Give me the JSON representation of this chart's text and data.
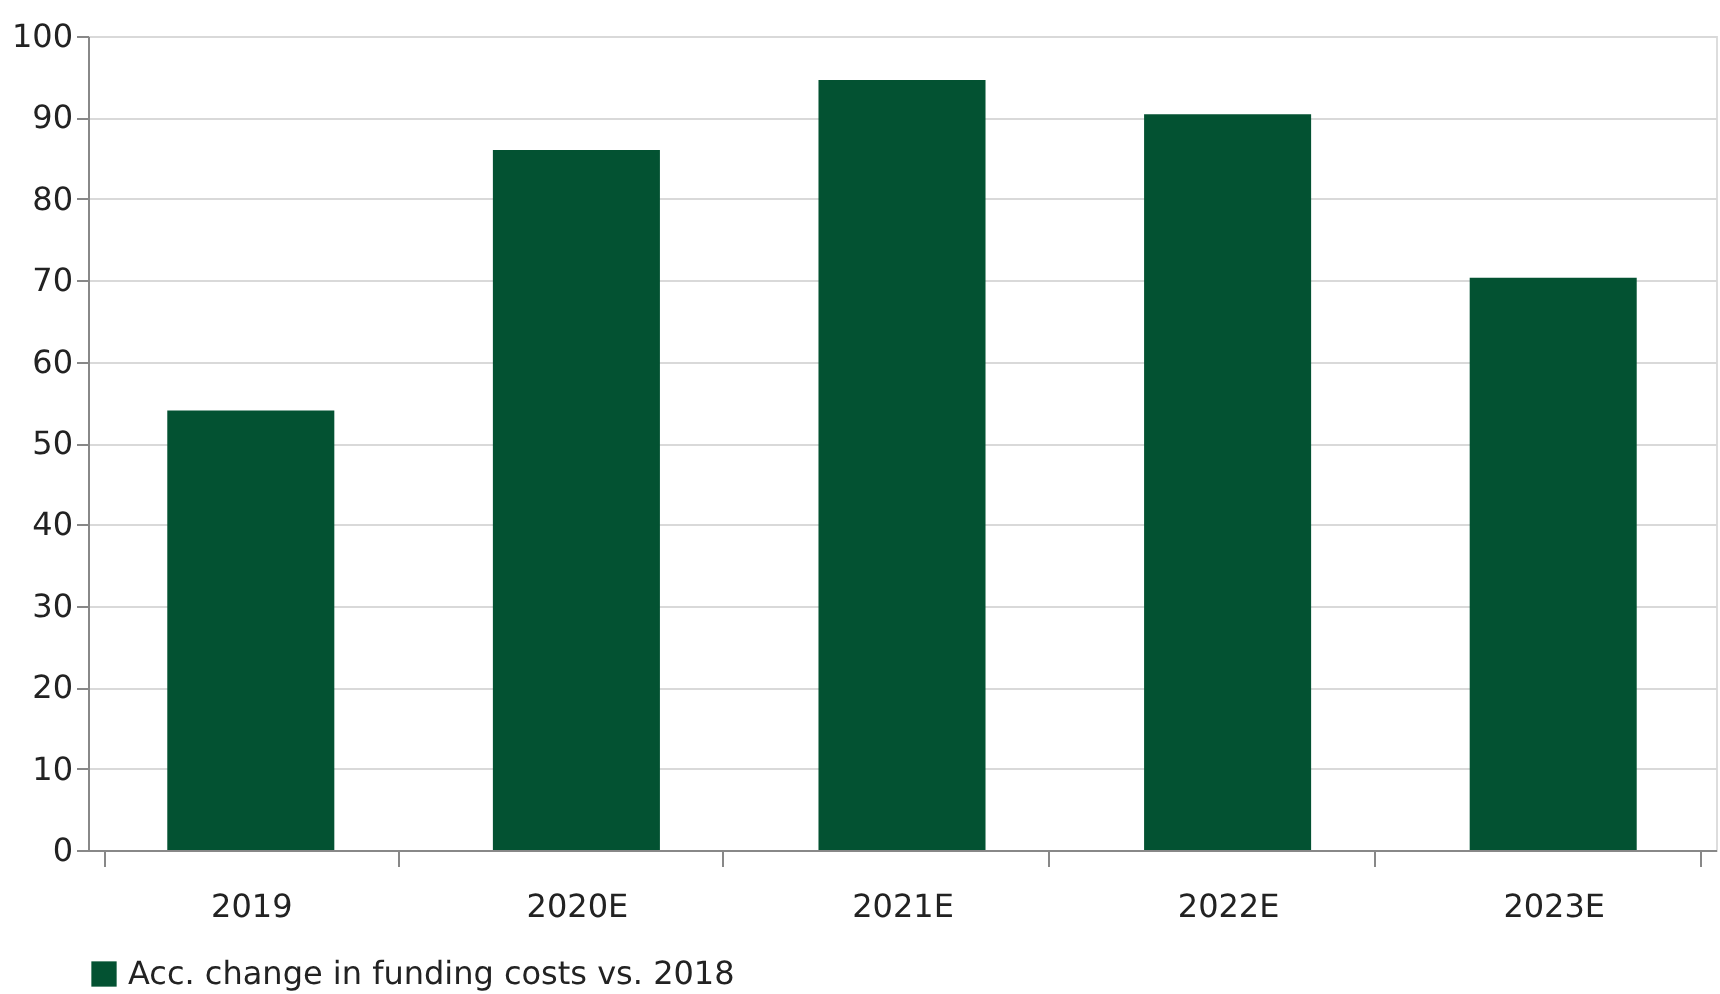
{
  "chart_data": {
    "type": "bar",
    "categories": [
      "2019",
      "2020E",
      "2021E",
      "2022E",
      "2023E"
    ],
    "series": [
      {
        "name": "Acc. change in funding costs vs. 2018",
        "color": "#035232",
        "values": [
          54,
          86,
          94.6,
          90.4,
          70.3
        ]
      }
    ],
    "ylim": [
      0,
      100
    ],
    "yticks": [
      0,
      10,
      20,
      30,
      40,
      50,
      60,
      70,
      80,
      90,
      100
    ],
    "grid": "y",
    "legend": "bottom"
  }
}
